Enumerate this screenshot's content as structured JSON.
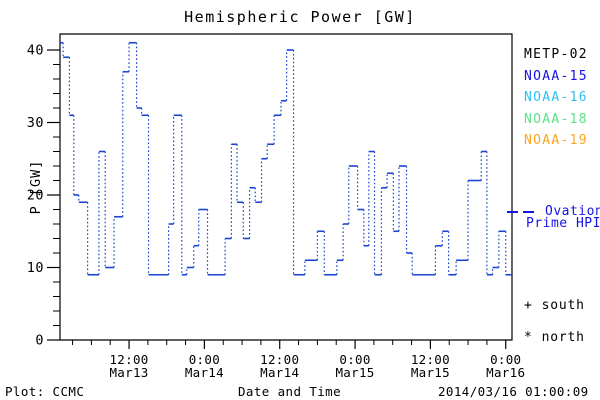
{
  "chart_data": {
    "type": "line",
    "title": "Hemispheric Power [GW]",
    "xlabel": "Date and Time",
    "ylabel": "P [GW]",
    "ylim": [
      0,
      40
    ],
    "grid": false,
    "y_ticks": [
      "0",
      "10",
      "20",
      "30",
      "40"
    ],
    "y_minor_step_gw": 2,
    "x_span_hours": 72,
    "x_minor_step_hours": 3,
    "x_ticks": [
      {
        "hour": 11,
        "time": "12:00",
        "date": "Mar13"
      },
      {
        "hour": 23,
        "time": "0:00",
        "date": "Mar14"
      },
      {
        "hour": 35,
        "time": "12:00",
        "date": "Mar14"
      },
      {
        "hour": 47,
        "time": "0:00",
        "date": "Mar15"
      },
      {
        "hour": 59,
        "time": "12:00",
        "date": "Mar15"
      },
      {
        "hour": 71,
        "time": "0:00",
        "date": "Mar16"
      }
    ],
    "series": [
      {
        "name": "Ovation Prime HPI",
        "color": "#1a46d2",
        "style": "step-dotted",
        "points_hour_gw": [
          [
            0,
            41
          ],
          [
            0.5,
            39
          ],
          [
            1.5,
            31
          ],
          [
            2.2,
            20
          ],
          [
            3,
            19
          ],
          [
            4.4,
            9
          ],
          [
            6.2,
            26
          ],
          [
            7.2,
            10
          ],
          [
            8.6,
            17
          ],
          [
            10,
            37
          ],
          [
            11,
            41
          ],
          [
            12.2,
            32
          ],
          [
            13,
            31
          ],
          [
            14.1,
            9
          ],
          [
            17.3,
            16
          ],
          [
            18.1,
            31
          ],
          [
            19.4,
            9
          ],
          [
            20.2,
            10
          ],
          [
            21.3,
            13
          ],
          [
            22.1,
            18
          ],
          [
            23.5,
            9
          ],
          [
            26.3,
            14
          ],
          [
            27.3,
            27
          ],
          [
            28.2,
            19
          ],
          [
            29.2,
            14
          ],
          [
            30.2,
            21
          ],
          [
            31.1,
            19
          ],
          [
            32.1,
            25
          ],
          [
            33,
            27
          ],
          [
            34.1,
            31
          ],
          [
            35.2,
            33
          ],
          [
            36.1,
            40
          ],
          [
            37.2,
            9
          ],
          [
            39,
            11
          ],
          [
            41,
            15
          ],
          [
            42.1,
            9
          ],
          [
            44.1,
            11
          ],
          [
            45.1,
            16
          ],
          [
            46,
            24
          ],
          [
            47.4,
            18
          ],
          [
            48.4,
            13
          ],
          [
            49.2,
            26
          ],
          [
            50.1,
            9
          ],
          [
            51.2,
            21
          ],
          [
            52.1,
            23
          ],
          [
            53.1,
            15
          ],
          [
            54,
            24
          ],
          [
            55.2,
            12
          ],
          [
            56.1,
            9
          ],
          [
            59.8,
            13
          ],
          [
            60.9,
            15
          ],
          [
            61.9,
            9
          ],
          [
            63.1,
            11
          ],
          [
            65,
            22
          ],
          [
            67.1,
            26
          ],
          [
            68,
            9
          ],
          [
            68.9,
            10
          ],
          [
            69.9,
            15
          ],
          [
            71,
            9
          ],
          [
            72,
            9
          ]
        ]
      }
    ]
  },
  "legend": {
    "satellites": [
      {
        "label": "METP-02",
        "color": "#000000"
      },
      {
        "label": "NOAA-15",
        "color": "#1414e6"
      },
      {
        "label": "NOAA-16",
        "color": "#2fbfef"
      },
      {
        "label": "NOAA-18",
        "color": "#5de08a"
      },
      {
        "label": "NOAA-19",
        "color": "#ffa320"
      }
    ],
    "model_line": {
      "label_line1": "Ovation",
      "label_line2": "Prime HPI",
      "color": "#1414e6"
    },
    "hemisphere_markers": [
      {
        "symbol": "+",
        "label": "south"
      },
      {
        "symbol": "*",
        "label": "north"
      }
    ]
  },
  "footer": {
    "credit": "Plot: CCMC",
    "timestamp": "2014/03/16 01:00:09"
  }
}
